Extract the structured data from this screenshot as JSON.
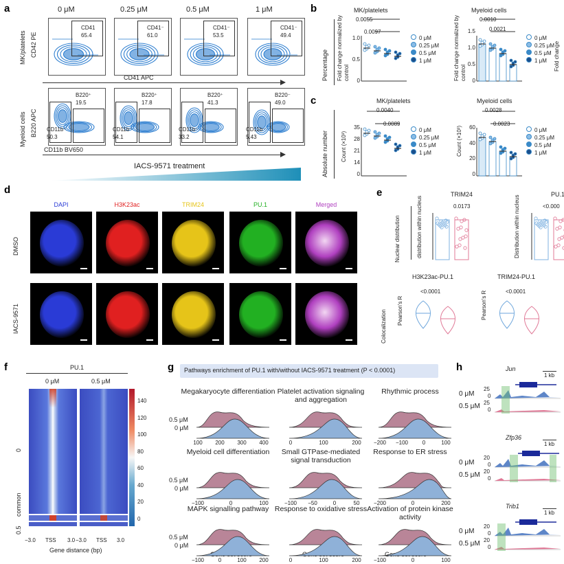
{
  "panel_a": {
    "letter": "a",
    "concentrations": [
      "0 μM",
      "0.25 μM",
      "0.5 μM",
      "1 μM"
    ],
    "row1": {
      "group": "MK/platelets",
      "y_axis": "CD42 PE",
      "x_axis": "CD41 APC",
      "gate_label": "CD41⁻",
      "gate_label_first": "CD41",
      "values": [
        "65.4",
        "61.0",
        "53.5",
        "49.4"
      ]
    },
    "row2": {
      "group": "Myeloid cells",
      "y_axis": "B220 APC",
      "x_axis": "CD11b BV650",
      "upper_gate": "B220⁺",
      "upper_gate_alt": "B220⁻",
      "upper_values": [
        "19.5",
        "17.8",
        "41.3",
        "49.0"
      ],
      "lower_gate": "CD11b⁻",
      "lower_values": [
        "50.3",
        "54.1",
        "33.2",
        "5.43"
      ]
    },
    "treatment": "IACS-9571 treatment"
  },
  "panel_b": {
    "letter": "b",
    "y_group": "Percentage",
    "left": {
      "title": "MK/platelets",
      "ylabel": "Fold change normalized by control",
      "pvals": [
        "0.0055",
        "0.0097"
      ],
      "yticks": [
        "1.0",
        "0.5",
        "0"
      ]
    },
    "right": {
      "title": "Myeloid cells",
      "ylabel": "Fold change normalized by control",
      "pvals": [
        "0.0010",
        "0.0021"
      ],
      "yticks": [
        "1.5",
        "1.0",
        "0.5",
        "0"
      ],
      "cutoff_label": "Fold change"
    },
    "legend": [
      "0 μM",
      "0.25 μM",
      "0.5 μM",
      "1 μM"
    ]
  },
  "panel_c": {
    "letter": "c",
    "y_group": "Absolute number",
    "left": {
      "title": "MK/platelets",
      "ylabel": "Count (×10³)",
      "pvals": [
        "0.0040",
        "0.0089"
      ],
      "yticks": [
        "35",
        "28",
        "21",
        "14",
        "0"
      ]
    },
    "right": {
      "title": "Myeloid cells",
      "ylabel": "Count (×10³)",
      "pvals": [
        "0.0028",
        "0.0023"
      ],
      "yticks": [
        "60",
        "40",
        "20",
        "0"
      ]
    },
    "legend": [
      "0 μM",
      "0.25 μM",
      "0.5 μM",
      "1 μM"
    ]
  },
  "panel_d": {
    "letter": "d",
    "channels": [
      "DAPI",
      "H3K23ac",
      "TRIM24",
      "PU.1",
      "Merged"
    ],
    "channel_colors": [
      "#2a3bd6",
      "#e02020",
      "#e6c419",
      "#22b022",
      "#b040c0"
    ],
    "rows": [
      "DMSO",
      "IACS-9571"
    ]
  },
  "panel_e": {
    "letter": "e",
    "top_group": "Nuclear distribution",
    "trim24": {
      "title": "TRIM24",
      "ylabel": "distribution within nucleus",
      "pval": "0.0173"
    },
    "pu1": {
      "title": "PU.1",
      "ylabel": "Distribution within nucleus",
      "pval": "<0.000"
    },
    "bottom_group": "Colocalization",
    "h3pu1": {
      "title": "H3K23ac-PU.1",
      "ylabel": "Pearson's R",
      "pval": "<0.0001"
    },
    "trimpu1": {
      "title": "TRIM24-PU.1",
      "ylabel": "Pearson's R",
      "pval": "<0.0001"
    }
  },
  "panel_f": {
    "letter": "f",
    "title": "PU.1",
    "columns": [
      "0 μM",
      "0.5 μM"
    ],
    "row_groups": [
      "0",
      "common",
      "0.5"
    ],
    "colorbar_ticks": [
      "140",
      "120",
      "100",
      "80",
      "60",
      "40",
      "20",
      "0"
    ],
    "x_ticks": [
      "−3.0",
      "TSS",
      "3.0",
      "−3.0",
      "TSS",
      "3.0"
    ],
    "x_label": "Gene distance (bp)"
  },
  "panel_g": {
    "letter": "g",
    "banner": "Pathways enrichment of PU.1 with/without IACS-9571 treatment (P < 0.0001)",
    "row_labels": [
      "0.5 μM",
      "0 μM"
    ],
    "x_label": "Gene set score",
    "pathways": [
      {
        "title": "Megakaryocyte differentiation",
        "ticks": [
          "100",
          "200",
          "300",
          "400"
        ]
      },
      {
        "title": "Platelet activation signaling and aggregation",
        "ticks": [
          "0",
          "100",
          "200"
        ]
      },
      {
        "title": "Rhythmic process",
        "ticks": [
          "−200",
          "−100",
          "0",
          "100"
        ]
      },
      {
        "title": "Myeloid cell differentiation",
        "ticks": [
          "−100",
          "0",
          "100"
        ]
      },
      {
        "title": "Small GTPase-mediated signal transduction",
        "ticks": [
          "−100",
          "−50",
          "0",
          "50"
        ]
      },
      {
        "title": "Response to ER stress",
        "ticks": [
          "−200",
          "0",
          "200"
        ]
      },
      {
        "title": "MAPK signalling pathway",
        "ticks": [
          "−100",
          "0",
          "100",
          "200"
        ]
      },
      {
        "title": "Response to oxidative stress",
        "ticks": [
          "0",
          "100",
          "200"
        ]
      },
      {
        "title": "Activation of protein kinase activity",
        "ticks": [
          "−100",
          "0",
          "100"
        ]
      }
    ],
    "colors": {
      "treated": "#b98598",
      "control": "#8fb1d8"
    }
  },
  "panel_h": {
    "letter": "h",
    "genes": [
      {
        "name": "Jun",
        "scale": "1 kb",
        "y0": "25",
        "y1": "0",
        "y2": "25",
        "y3": "0"
      },
      {
        "name": "Zfp36",
        "scale": "1 kb",
        "y0": "20",
        "y1": "0",
        "y2": "20",
        "y3": "0"
      },
      {
        "name": "Trib1",
        "scale": "1 kb",
        "y0": "20",
        "y1": "0",
        "y2": "20",
        "y3": "0"
      }
    ],
    "row_labels": [
      "0 μM",
      "0.5 μM"
    ]
  }
}
